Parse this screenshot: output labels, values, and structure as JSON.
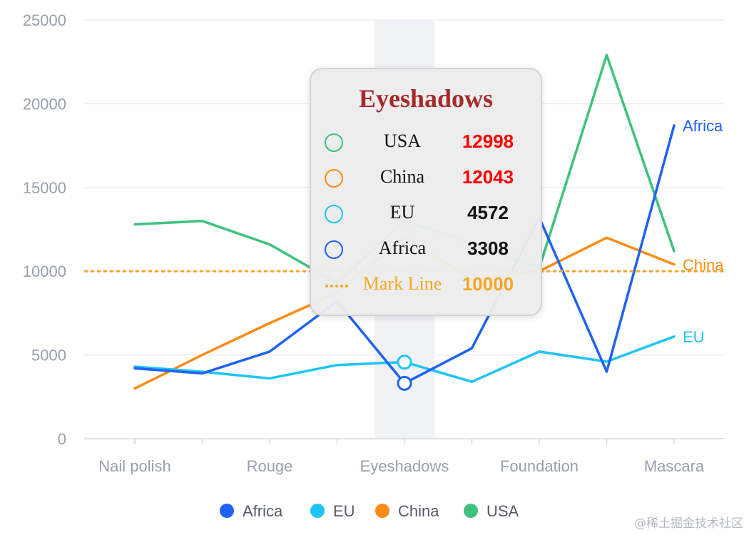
{
  "chart_data": {
    "type": "line",
    "categories": [
      "Nail polish",
      "",
      "Rouge",
      "",
      "Eyeshadows",
      "",
      "Foundation",
      "",
      "Mascara"
    ],
    "x_tick_labels": [
      "Nail polish",
      "Rouge",
      "Eyeshadows",
      "Foundation",
      "Mascara"
    ],
    "y_ticks": [
      "0",
      "5000",
      "10000",
      "15000",
      "20000",
      "25000"
    ],
    "ylim": [
      0,
      25000
    ],
    "grid": true,
    "legend_position": "bottom-center",
    "series": [
      {
        "name": "Africa",
        "color": "#1f62f2",
        "values": [
          4200,
          3900,
          5200,
          8200,
          3308,
          5400,
          13200,
          4000,
          18700
        ]
      },
      {
        "name": "EU",
        "color": "#1ec5f5",
        "values": [
          4300,
          4000,
          3600,
          4400,
          4572,
          3400,
          5200,
          4600,
          6100
        ]
      },
      {
        "name": "China",
        "color": "#fa8c16",
        "values": [
          3000,
          5000,
          6900,
          8700,
          12043,
          9500,
          10000,
          12000,
          10400
        ]
      },
      {
        "name": "USA",
        "color": "#3ec27d",
        "values": [
          12800,
          13000,
          11600,
          9300,
          12998,
          11700,
          10200,
          22900,
          11200
        ]
      }
    ],
    "end_labels": [
      {
        "series": "Africa",
        "text": "Africa"
      },
      {
        "series": "China",
        "text": "China"
      },
      {
        "series": "EU",
        "text": "EU"
      }
    ],
    "mark_line": {
      "name": "Mark Line",
      "value": 10000,
      "color": "#f5a623"
    },
    "highlighted_category": "Eyeshadows"
  },
  "tooltip": {
    "title": "Eyeshadows",
    "rows": [
      {
        "name": "USA",
        "value": "12998",
        "marker_color": "#3ec27d",
        "value_color": "#ff0000"
      },
      {
        "name": "China",
        "value": "12043",
        "marker_color": "#fa8c16",
        "value_color": "#ff0000"
      },
      {
        "name": "EU",
        "value": "4572",
        "marker_color": "#1ec5f5",
        "value_color": "#111111"
      },
      {
        "name": "Africa",
        "value": "3308",
        "marker_color": "#1f62f2",
        "value_color": "#111111"
      }
    ],
    "mark_row": {
      "name": "Mark Line",
      "value": "10000",
      "color": "#f5a623"
    }
  },
  "watermark": "@稀土掘金技术社区"
}
